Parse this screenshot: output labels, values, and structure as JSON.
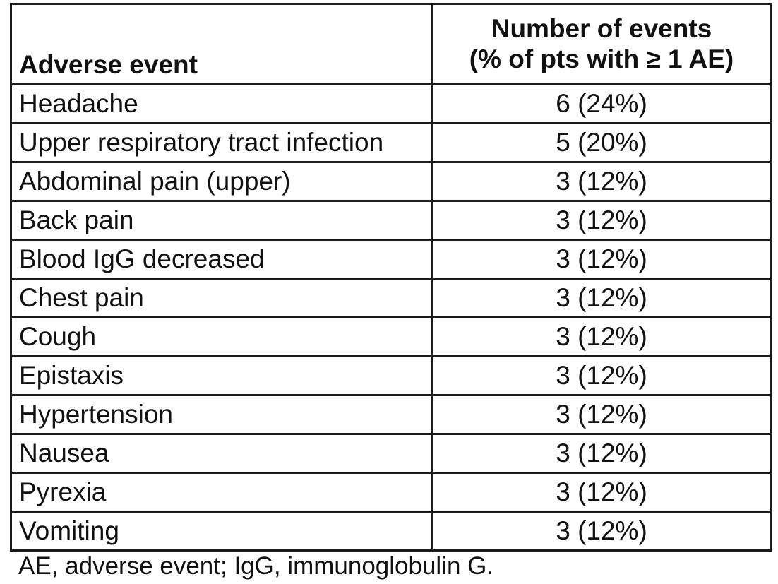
{
  "table": {
    "headers": {
      "event": "Adverse event",
      "count_line1": "Number of events",
      "count_line2": "(% of pts with ≥ 1 AE)"
    },
    "rows": [
      {
        "event": "Headache",
        "count": "6 (24%)"
      },
      {
        "event": "Upper respiratory tract infection",
        "count": "5 (20%)"
      },
      {
        "event": "Abdominal pain (upper)",
        "count": "3 (12%)"
      },
      {
        "event": "Back pain",
        "count": "3 (12%)"
      },
      {
        "event": "Blood IgG decreased",
        "count": "3 (12%)"
      },
      {
        "event": "Chest pain",
        "count": "3 (12%)"
      },
      {
        "event": "Cough",
        "count": "3 (12%)"
      },
      {
        "event": "Epistaxis",
        "count": "3 (12%)"
      },
      {
        "event": "Hypertension",
        "count": "3 (12%)"
      },
      {
        "event": "Nausea",
        "count": "3 (12%)"
      },
      {
        "event": "Pyrexia",
        "count": "3 (12%)"
      },
      {
        "event": "Vomiting",
        "count": "3 (12%)"
      }
    ]
  },
  "footnote": "AE, adverse event; IgG, immunoglobulin G."
}
